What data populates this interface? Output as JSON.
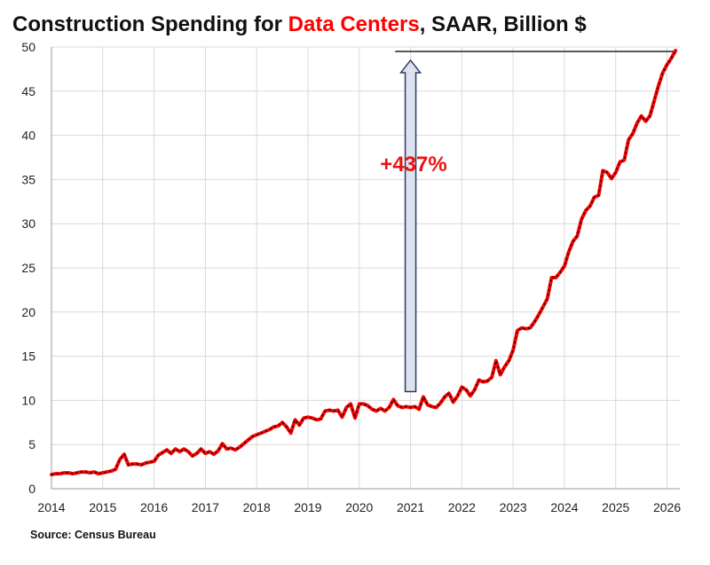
{
  "title": {
    "prefix": "Construction Spending for ",
    "highlight": "Data Centers",
    "suffix": ", SAAR, Billion $"
  },
  "source": "Source: Census Bureau",
  "colors": {
    "line": "#ff0000",
    "line_dash": "#111111",
    "highlight": "#ff0000",
    "annotation": "#ee1111",
    "arrow_fill": "#dde3ee",
    "arrow_stroke": "#2a3a66",
    "grid": "#d9d9d9"
  },
  "chart_data": {
    "type": "line",
    "title": "Construction Spending for Data Centers, SAAR, Billion $",
    "xlabel": "",
    "ylabel": "",
    "xlim": [
      2014,
      2026.25
    ],
    "ylim": [
      0,
      50
    ],
    "xticks": [
      2014,
      2015,
      2016,
      2017,
      2018,
      2019,
      2020,
      2021,
      2022,
      2023,
      2024,
      2025,
      2026
    ],
    "yticks": [
      0,
      5,
      10,
      15,
      20,
      25,
      30,
      35,
      40,
      45,
      50
    ],
    "grid": true,
    "legend": "none",
    "series": [
      {
        "x": [
          2014.0,
          2014.083,
          2014.167,
          2014.25,
          2014.333,
          2014.417,
          2014.5,
          2014.583,
          2014.667,
          2014.75,
          2014.833,
          2014.917,
          2015.0,
          2015.083,
          2015.167,
          2015.25,
          2015.333,
          2015.417,
          2015.5,
          2015.583,
          2015.667,
          2015.75,
          2015.833,
          2015.917,
          2016.0,
          2016.083,
          2016.167,
          2016.25,
          2016.333,
          2016.417,
          2016.5,
          2016.583,
          2016.667,
          2016.75,
          2016.833,
          2016.917,
          2017.0,
          2017.083,
          2017.167,
          2017.25,
          2017.333,
          2017.417,
          2017.5,
          2017.583,
          2017.667,
          2017.75,
          2017.833,
          2017.917,
          2018.0,
          2018.083,
          2018.167,
          2018.25,
          2018.333,
          2018.417,
          2018.5,
          2018.583,
          2018.667,
          2018.75,
          2018.833,
          2018.917,
          2019.0,
          2019.083,
          2019.167,
          2019.25,
          2019.333,
          2019.417,
          2019.5,
          2019.583,
          2019.667,
          2019.75,
          2019.833,
          2019.917,
          2020.0,
          2020.083,
          2020.167,
          2020.25,
          2020.333,
          2020.417,
          2020.5,
          2020.583,
          2020.667,
          2020.75,
          2020.833,
          2020.917,
          2021.0,
          2021.083,
          2021.167,
          2021.25,
          2021.333,
          2021.417,
          2021.5,
          2021.583,
          2021.667,
          2021.75,
          2021.833,
          2021.917,
          2022.0,
          2022.083,
          2022.167,
          2022.25,
          2022.333,
          2022.417,
          2022.5,
          2022.583,
          2022.667,
          2022.75,
          2022.833,
          2022.917,
          2023.0,
          2023.083,
          2023.167,
          2023.25,
          2023.333,
          2023.417,
          2023.5,
          2023.583,
          2023.667,
          2023.75,
          2023.833,
          2023.917,
          2024.0,
          2024.083,
          2024.167,
          2024.25,
          2024.333,
          2024.417,
          2024.5,
          2024.583,
          2024.667,
          2024.75,
          2024.833,
          2024.917,
          2025.0,
          2025.083,
          2025.167,
          2025.25,
          2025.333,
          2025.417,
          2025.5,
          2025.583,
          2025.667,
          2025.75,
          2025.833,
          2025.917,
          2026.0,
          2026.083,
          2026.167
        ],
        "values": [
          1.6,
          1.7,
          1.7,
          1.8,
          1.8,
          1.7,
          1.8,
          1.9,
          1.9,
          1.8,
          1.9,
          1.7,
          1.8,
          1.9,
          2.0,
          2.2,
          3.3,
          3.9,
          2.7,
          2.8,
          2.8,
          2.7,
          2.9,
          3.0,
          3.1,
          3.8,
          4.1,
          4.4,
          4.0,
          4.5,
          4.2,
          4.5,
          4.2,
          3.7,
          4.0,
          4.5,
          4.0,
          4.2,
          3.9,
          4.3,
          5.1,
          4.5,
          4.6,
          4.4,
          4.7,
          5.1,
          5.5,
          5.9,
          6.1,
          6.3,
          6.5,
          6.7,
          7.0,
          7.1,
          7.5,
          7.0,
          6.3,
          7.8,
          7.2,
          8.0,
          8.1,
          8.0,
          7.8,
          7.9,
          8.8,
          8.9,
          8.8,
          8.9,
          8.1,
          9.2,
          9.6,
          8.0,
          9.6,
          9.6,
          9.4,
          9.0,
          8.8,
          9.1,
          8.8,
          9.2,
          10.1,
          9.4,
          9.2,
          9.3,
          9.2,
          9.3,
          9.0,
          10.4,
          9.5,
          9.3,
          9.2,
          9.7,
          10.4,
          10.8,
          9.8,
          10.5,
          11.5,
          11.2,
          10.5,
          11.2,
          12.3,
          12.1,
          12.2,
          12.6,
          14.5,
          12.9,
          13.8,
          14.5,
          15.7,
          17.9,
          18.2,
          18.1,
          18.2,
          18.9,
          19.7,
          20.6,
          21.5,
          23.9,
          23.9,
          24.5,
          25.2,
          26.8,
          28.0,
          28.6,
          30.5,
          31.5,
          32.0,
          33.0,
          33.2,
          36.0,
          35.8,
          35.1,
          35.8,
          37.0,
          37.2,
          39.5,
          40.2,
          41.4,
          42.2,
          41.6,
          42.2,
          43.9,
          45.6,
          47.1,
          48.0,
          48.7,
          49.6
        ]
      }
    ],
    "annotations": {
      "growth_label": "+437%",
      "arrow_from": {
        "x": 2021.0,
        "y": 11.0
      },
      "arrow_to": {
        "x": 2021.0,
        "y": 48.5
      },
      "reference_line": {
        "x_start": 2020.7,
        "x_end": 2026.17,
        "y": 49.5
      }
    }
  }
}
